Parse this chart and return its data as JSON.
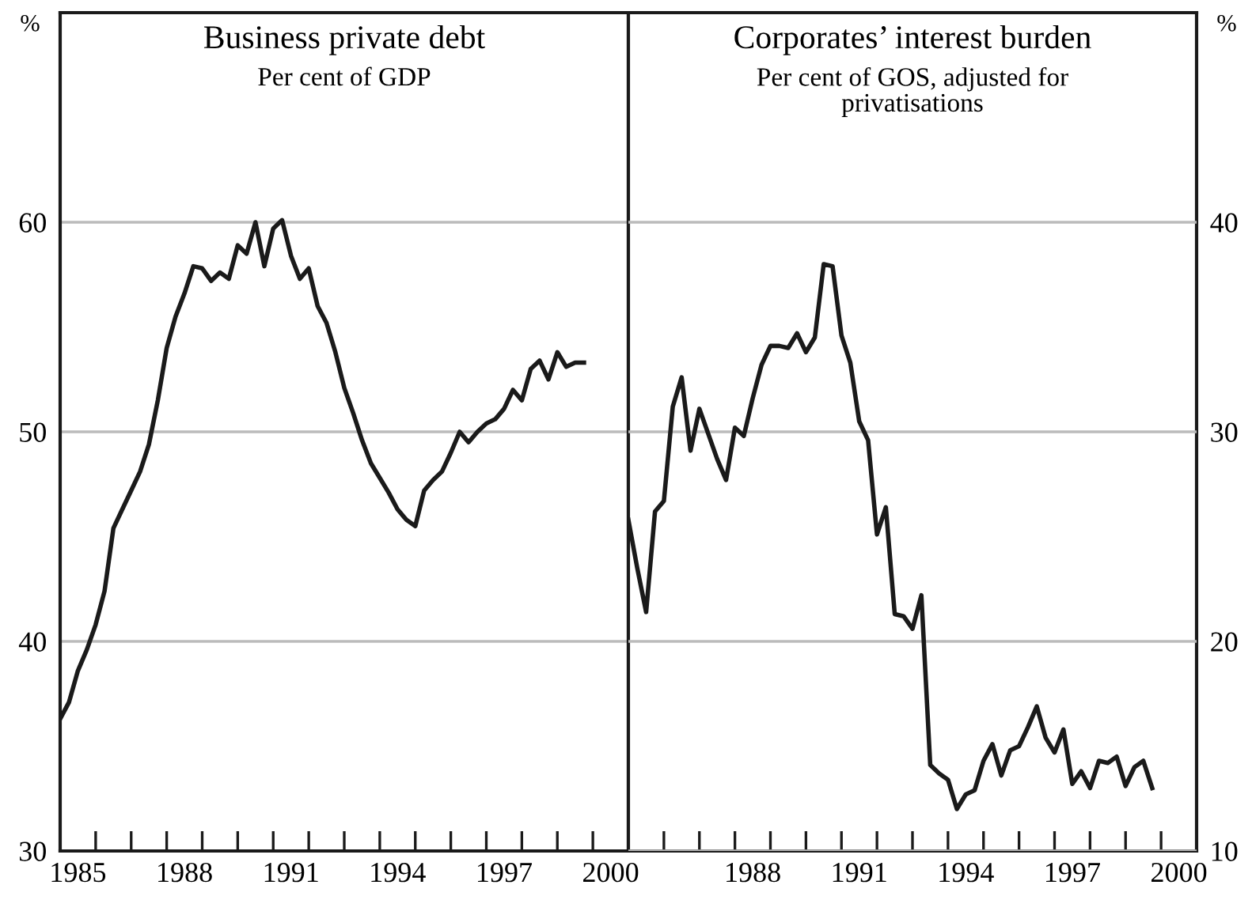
{
  "chart_data": [
    {
      "type": "line",
      "title": "Business private debt",
      "subtitle": "Per cent of GDP",
      "ylabel": "%",
      "x": [
        1985.0,
        1985.25,
        1985.5,
        1985.75,
        1986.0,
        1986.25,
        1986.5,
        1986.75,
        1987.0,
        1987.25,
        1987.5,
        1987.75,
        1988.0,
        1988.25,
        1988.5,
        1988.75,
        1989.0,
        1989.25,
        1989.5,
        1989.75,
        1990.0,
        1990.25,
        1990.5,
        1990.75,
        1991.0,
        1991.25,
        1991.5,
        1991.75,
        1992.0,
        1992.25,
        1992.5,
        1992.75,
        1993.0,
        1993.25,
        1993.5,
        1993.75,
        1994.0,
        1994.25,
        1994.5,
        1994.75,
        1995.0,
        1995.25,
        1995.5,
        1995.75,
        1996.0,
        1996.25,
        1996.5,
        1996.75,
        1997.0,
        1997.25,
        1997.5,
        1997.75,
        1998.0,
        1998.25,
        1998.5,
        1998.75,
        1999.0,
        1999.25,
        1999.5,
        1999.75
      ],
      "series": [
        {
          "color": "#1a1a1a",
          "values": [
            36.3,
            37.1,
            38.6,
            39.6,
            40.8,
            42.4,
            45.4,
            46.3,
            47.2,
            48.1,
            49.4,
            51.5,
            54.0,
            55.5,
            56.6,
            57.9,
            57.8,
            57.2,
            57.6,
            57.3,
            58.9,
            58.5,
            60.0,
            57.9,
            59.7,
            60.1,
            58.4,
            57.3,
            57.8,
            56.0,
            55.2,
            53.8,
            52.1,
            50.9,
            49.6,
            48.5,
            47.8,
            47.1,
            46.3,
            45.8,
            45.5,
            47.2,
            47.7,
            48.1,
            49.0,
            50.0,
            49.5,
            50.0,
            50.4,
            50.6,
            51.1,
            52.0,
            51.5,
            53.0,
            53.4,
            52.5,
            53.8,
            53.1,
            53.3,
            53.3
          ]
        }
      ],
      "xlim": [
        1985,
        2001
      ],
      "xticks": [
        {
          "value": 1985,
          "label": null
        },
        {
          "value": 1986,
          "label": null
        },
        {
          "value": 1987,
          "label": null
        },
        {
          "value": 1988,
          "label": null
        },
        {
          "value": 1989,
          "label": null
        },
        {
          "value": 1990,
          "label": null
        },
        {
          "value": 1991,
          "label": null
        },
        {
          "value": 1992,
          "label": null
        },
        {
          "value": 1993,
          "label": null
        },
        {
          "value": 1994,
          "label": null
        },
        {
          "value": 1995,
          "label": null
        },
        {
          "value": 1996,
          "label": null
        },
        {
          "value": 1997,
          "label": null
        },
        {
          "value": 1998,
          "label": null
        },
        {
          "value": 1999,
          "label": null
        },
        {
          "value": 2000,
          "label": null
        },
        {
          "value": 2001,
          "label": null
        },
        {
          "value": 1985.5,
          "label": "1985"
        },
        {
          "value": 1988.5,
          "label": "1988"
        },
        {
          "value": 1991.5,
          "label": "1991"
        },
        {
          "value": 1994.5,
          "label": "1994"
        },
        {
          "value": 1997.5,
          "label": "1997"
        },
        {
          "value": 2000.5,
          "label": "2000"
        }
      ],
      "ylim": [
        30,
        70
      ],
      "yticks": [
        30,
        40,
        50,
        60
      ],
      "grid": "y",
      "line_style": "solid"
    },
    {
      "type": "line",
      "title": "Corporates’ interest burden",
      "subtitle": "Per cent of GOS, adjusted for\nprivatisations",
      "y2label": "%",
      "x": [
        1985.0,
        1985.25,
        1985.5,
        1985.75,
        1986.0,
        1986.25,
        1986.5,
        1986.75,
        1987.0,
        1987.25,
        1987.5,
        1987.75,
        1988.0,
        1988.25,
        1988.5,
        1988.75,
        1989.0,
        1989.25,
        1989.5,
        1989.75,
        1990.0,
        1990.25,
        1990.5,
        1990.75,
        1991.0,
        1991.25,
        1991.5,
        1991.75,
        1992.0,
        1992.25,
        1992.5,
        1992.75,
        1993.0,
        1993.25,
        1993.5,
        1993.75,
        1994.0,
        1994.25,
        1994.5,
        1994.75,
        1995.0,
        1995.25,
        1995.5,
        1995.75,
        1996.0,
        1996.25,
        1996.5,
        1996.75,
        1997.0,
        1997.25,
        1997.5,
        1997.75,
        1998.0,
        1998.25,
        1998.5,
        1998.75,
        1999.0,
        1999.25,
        1999.5,
        1999.75
      ],
      "series": [
        {
          "color": "#1a1a1a",
          "axis": "y2",
          "values": [
            25.8,
            23.5,
            21.4,
            26.2,
            26.7,
            31.2,
            32.6,
            29.1,
            31.1,
            29.9,
            28.7,
            27.7,
            30.2,
            29.8,
            31.6,
            33.2,
            34.1,
            34.1,
            34.0,
            34.7,
            33.8,
            34.5,
            38.0,
            37.9,
            34.6,
            33.3,
            30.5,
            29.6,
            25.1,
            26.4,
            21.3,
            21.2,
            20.6,
            22.2,
            14.1,
            13.7,
            13.4,
            12.0,
            12.7,
            12.9,
            14.3,
            15.1,
            13.6,
            14.8,
            15.0,
            15.9,
            16.9,
            15.4,
            14.7,
            15.8,
            13.2,
            13.8,
            13.0,
            14.3,
            14.2,
            14.5,
            13.1,
            14.0,
            14.3,
            13.0
          ]
        }
      ],
      "xlim": [
        1985,
        2001
      ],
      "xticks": [
        {
          "value": 1985,
          "label": null
        },
        {
          "value": 1986,
          "label": null
        },
        {
          "value": 1987,
          "label": null
        },
        {
          "value": 1988,
          "label": null
        },
        {
          "value": 1989,
          "label": null
        },
        {
          "value": 1990,
          "label": null
        },
        {
          "value": 1991,
          "label": null
        },
        {
          "value": 1992,
          "label": null
        },
        {
          "value": 1993,
          "label": null
        },
        {
          "value": 1994,
          "label": null
        },
        {
          "value": 1995,
          "label": null
        },
        {
          "value": 1996,
          "label": null
        },
        {
          "value": 1997,
          "label": null
        },
        {
          "value": 1998,
          "label": null
        },
        {
          "value": 1999,
          "label": null
        },
        {
          "value": 2000,
          "label": null
        },
        {
          "value": 2001,
          "label": null
        },
        {
          "value": 1988.5,
          "label": "1988"
        },
        {
          "value": 1991.5,
          "label": "1991"
        },
        {
          "value": 1994.5,
          "label": "1994"
        },
        {
          "value": 1997.5,
          "label": "1997"
        },
        {
          "value": 2000.5,
          "label": "2000"
        }
      ],
      "y2lim": [
        10,
        50
      ],
      "y2ticks": [
        10,
        20,
        30,
        40
      ],
      "grid": "y",
      "line_style": "solid"
    }
  ]
}
